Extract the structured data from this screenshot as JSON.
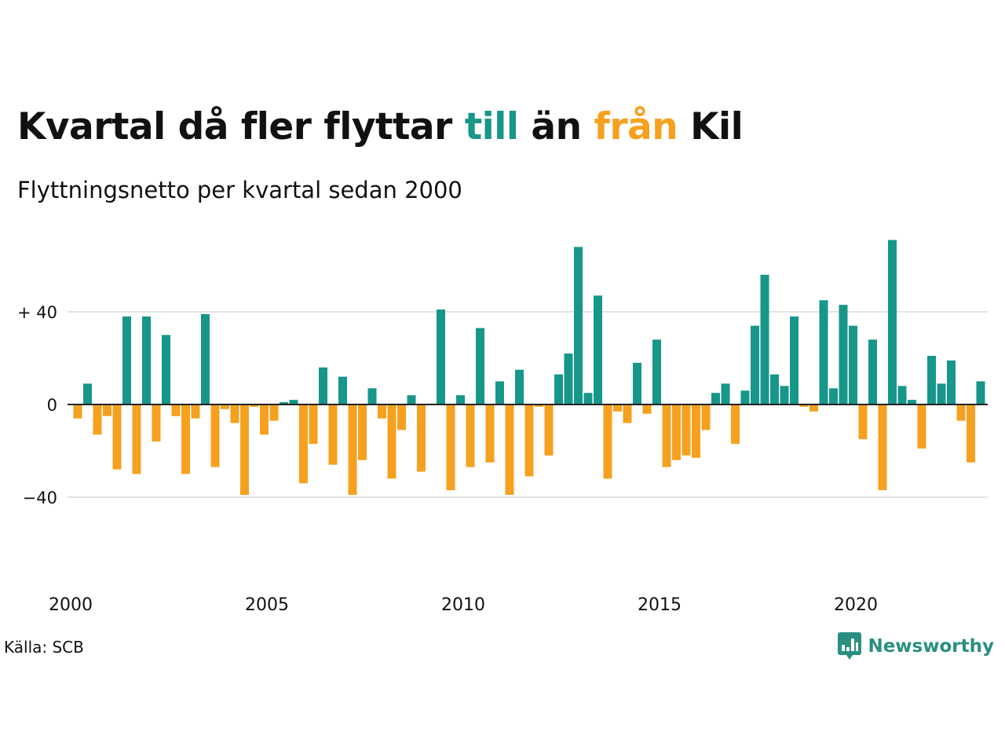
{
  "title": {
    "part1": "Kvartal då fler flyttar ",
    "till": "till",
    "part2": " än ",
    "fran": "från",
    "part3": " Kil"
  },
  "subtitle": "Flyttningsnetto per kvartal sedan 2000",
  "source": "Källa: SCB",
  "logo_text": "Newsworthy",
  "chart_data": {
    "type": "bar",
    "x_start_year": 2000,
    "x_tick_labels": [
      "2000",
      "2005",
      "2010",
      "2015",
      "2020"
    ],
    "y_ticks": [
      40,
      0,
      -40
    ],
    "y_tick_labels": [
      "+ 40",
      "0",
      "−40"
    ],
    "ylim": [
      -75,
      75
    ],
    "grid": true,
    "colors": {
      "positive": "#17968a",
      "negative": "#f5a11f",
      "grid": "#e3e3e3",
      "axis": "#222222"
    },
    "values": [
      -6,
      9,
      -13,
      -5,
      -28,
      38,
      -30,
      38,
      -16,
      30,
      -5,
      -30,
      -6,
      39,
      -27,
      -2,
      -8,
      -39,
      -1,
      -13,
      -7,
      1,
      2,
      -34,
      -17,
      16,
      -26,
      12,
      -39,
      -24,
      7,
      -6,
      -32,
      -11,
      4,
      -29,
      0,
      41,
      -37,
      4,
      -27,
      33,
      -25,
      10,
      -39,
      15,
      -31,
      -1,
      -22,
      13,
      22,
      68,
      5,
      47,
      -32,
      -3,
      -8,
      18,
      -4,
      28,
      -27,
      -24,
      -22,
      -23,
      -11,
      5,
      9,
      -17,
      6,
      34,
      56,
      13,
      8,
      38,
      -1,
      -3,
      45,
      7,
      43,
      34,
      -15,
      28,
      -37,
      71,
      8,
      2,
      -19,
      21,
      9,
      19,
      -7,
      -25,
      10
    ]
  }
}
